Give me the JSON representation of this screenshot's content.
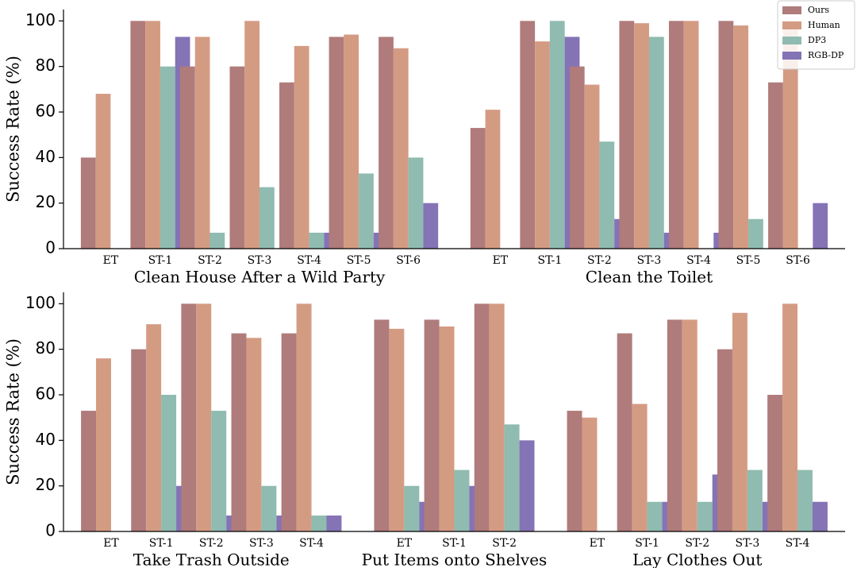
{
  "chart_data": [
    {
      "type": "bar",
      "ylabel": "Success Rate (%)",
      "ylim": [
        0,
        105
      ],
      "yticks": [
        0,
        20,
        40,
        60,
        80,
        100
      ],
      "legend": "upper right",
      "groups": [
        {
          "name": "Clean House After a Wild Party",
          "categories": [
            "ET",
            "ST-1",
            "ST-2",
            "ST-3",
            "ST-4",
            "ST-5",
            "ST-6"
          ]
        },
        {
          "name": "Clean the Toilet",
          "categories": [
            "ET",
            "ST-1",
            "ST-2",
            "ST-3",
            "ST-4",
            "ST-5",
            "ST-6"
          ]
        }
      ],
      "series": [
        {
          "name": "Ours",
          "color": "#b07b7b",
          "values": [
            40,
            100,
            80,
            80,
            73,
            93,
            93,
            53,
            100,
            80,
            100,
            100,
            100,
            73
          ]
        },
        {
          "name": "Human",
          "color": "#d49b83",
          "values": [
            68,
            100,
            93,
            100,
            89,
            94,
            88,
            61,
            91,
            72,
            99,
            100,
            98,
            100
          ]
        },
        {
          "name": "DP3",
          "color": "#8fbbb0",
          "values": [
            0,
            80,
            7,
            27,
            7,
            33,
            40,
            0,
            100,
            47,
            93,
            0,
            13,
            0
          ]
        },
        {
          "name": "RGB-DP",
          "color": "#8473b5",
          "values": [
            0,
            93,
            0,
            0,
            7,
            7,
            20,
            0,
            93,
            13,
            7,
            7,
            0,
            20
          ]
        }
      ]
    },
    {
      "type": "bar",
      "ylabel": "Success Rate (%)",
      "ylim": [
        0,
        105
      ],
      "yticks": [
        0,
        20,
        40,
        60,
        80,
        100
      ],
      "groups": [
        {
          "name": "Take Trash Outside",
          "categories": [
            "ET",
            "ST-1",
            "ST-2",
            "ST-3",
            "ST-4"
          ]
        },
        {
          "name": "Put Items onto Shelves",
          "categories": [
            "ET",
            "ST-1",
            "ST-2"
          ]
        },
        {
          "name": "Lay Clothes Out",
          "categories": [
            "ET",
            "ST-1",
            "ST-2",
            "ST-3",
            "ST-4"
          ]
        }
      ],
      "series": [
        {
          "color": "#b07b7b",
          "values": [
            53,
            80,
            100,
            87,
            87,
            93,
            93,
            100,
            53,
            87,
            93,
            80,
            60
          ]
        },
        {
          "color": "#d49b83",
          "values": [
            76,
            91,
            100,
            85,
            100,
            89,
            90,
            100,
            50,
            56,
            93,
            96,
            100
          ]
        },
        {
          "color": "#8fbbb0",
          "values": [
            0,
            60,
            53,
            20,
            7,
            20,
            27,
            47,
            0,
            13,
            13,
            27,
            27
          ]
        },
        {
          "color": "#8473b5",
          "values": [
            0,
            20,
            7,
            7,
            7,
            13,
            20,
            40,
            0,
            13,
            25,
            13,
            13
          ]
        }
      ]
    }
  ]
}
